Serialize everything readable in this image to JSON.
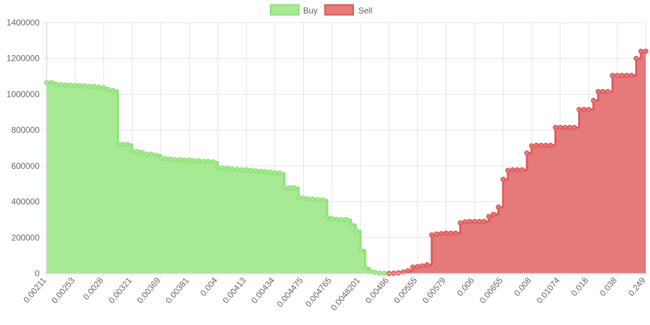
{
  "chart_data": {
    "type": "area",
    "title": "",
    "xlabel": "",
    "ylabel": "",
    "ylim": [
      0,
      1400000
    ],
    "y_ticks": [
      "0",
      "200000",
      "400000",
      "600000",
      "800000",
      "1000000",
      "1200000",
      "1400000"
    ],
    "x_tick_labels": [
      "0.00211",
      "0.00253",
      "0.0028",
      "0.00321",
      "0.00369",
      "0.00381",
      "0.004",
      "0.00413",
      "0.00434",
      "0.004475",
      "0.004765",
      "0.0048201",
      "0.00486",
      "0.00555",
      "0.00579",
      "0.006",
      "0.00655",
      "0.008",
      "0.01074",
      "0.018",
      "0.038",
      "0.249"
    ],
    "grid": true,
    "legend_position": "top",
    "series": [
      {
        "name": "Buy",
        "color": "#8ee07a",
        "fill": "#a8ea94",
        "stepped": true,
        "values": [
          1065000,
          1065000,
          1055000,
          1053000,
          1052000,
          1050000,
          1049000,
          1048000,
          1047000,
          1044000,
          1042000,
          1040000,
          1035000,
          1025000,
          1020000,
          720000,
          720000,
          720000,
          680000,
          680000,
          675000,
          665000,
          665000,
          660000,
          645000,
          640000,
          638000,
          635000,
          635000,
          633000,
          632000,
          630000,
          628000,
          625000,
          625000,
          622000,
          590000,
          588000,
          586000,
          582000,
          581000,
          578000,
          578000,
          575000,
          572000,
          570000,
          568000,
          565000,
          562000,
          560000,
          478000,
          478000,
          478000,
          425000,
          420000,
          416000,
          414000,
          412000,
          410000,
          312000,
          305000,
          302000,
          300000,
          300000,
          272000,
          238000,
          130000,
          30000,
          12000,
          6000,
          2000,
          0
        ]
      },
      {
        "name": "Sell",
        "color": "#e05a5a",
        "fill": "#e67a7a",
        "stepped": true,
        "values": [
          null,
          null,
          null,
          null,
          null,
          null,
          null,
          null,
          null,
          null,
          null,
          null,
          null,
          null,
          null,
          null,
          null,
          null,
          null,
          null,
          null,
          null,
          null,
          null,
          null,
          null,
          null,
          null,
          null,
          null,
          null,
          null,
          null,
          null,
          null,
          null,
          null,
          null,
          null,
          null,
          null,
          null,
          null,
          null,
          null,
          null,
          null,
          null,
          null,
          null,
          null,
          null,
          null,
          null,
          null,
          null,
          null,
          null,
          null,
          null,
          null,
          null,
          null,
          null,
          null,
          null,
          null,
          null,
          null,
          null,
          null,
          null,
          0,
          1000,
          3000,
          8000,
          15000,
          35000,
          38000,
          42000,
          48000,
          215000,
          220000,
          222000,
          225000,
          225000,
          225000,
          282000,
          288000,
          290000,
          290000,
          290000,
          290000,
          318000,
          330000,
          370000,
          525000,
          575000,
          578000,
          578000,
          578000,
          672000,
          712000,
          715000,
          715000,
          715000,
          715000,
          815000,
          815000,
          815000,
          815000,
          815000,
          915000,
          915000,
          915000,
          965000,
          1015000,
          1015000,
          1015000,
          1105000,
          1105000,
          1105000,
          1105000,
          1105000,
          1200000,
          1240000,
          1240000
        ]
      }
    ]
  }
}
